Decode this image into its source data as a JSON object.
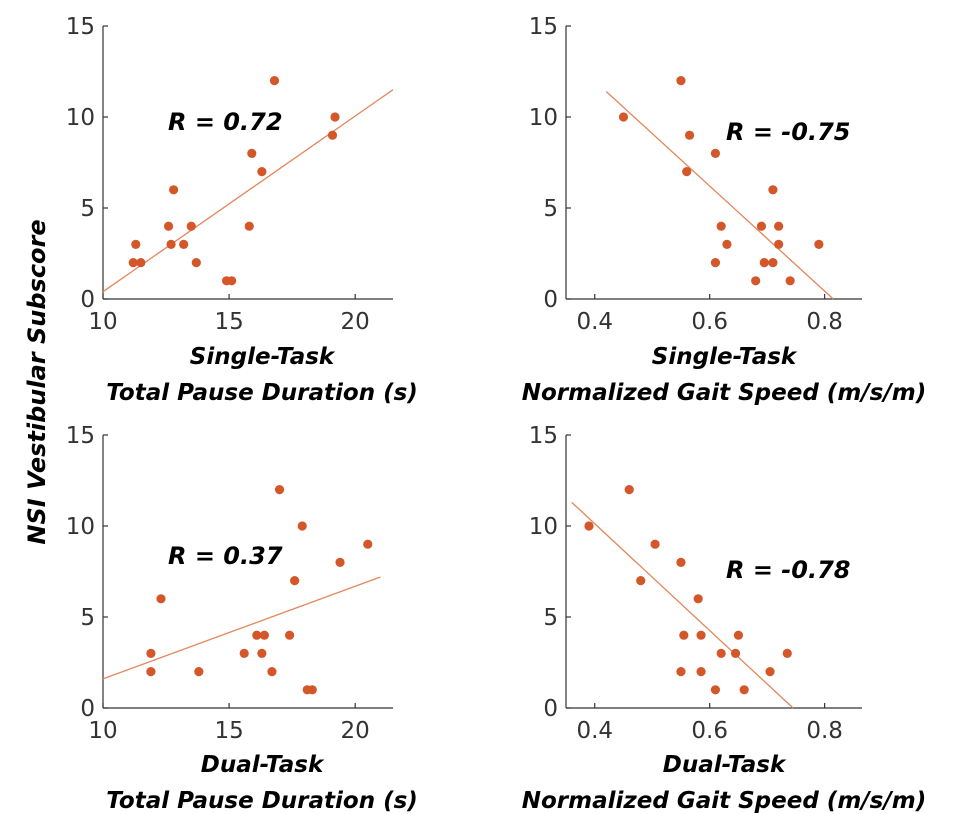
{
  "figure": {
    "ylabel": "NSI Vestibular Subscore",
    "point_color": "#D4572A",
    "fit_color": "#E2875A",
    "axis_color": "#333333"
  },
  "chart_data": [
    {
      "type": "scatter",
      "id": "st-pause",
      "xlabel_line1": "Single-Task",
      "xlabel_line2": "Total Pause Duration (s)",
      "annotation": "R = 0.72",
      "xlim": [
        10,
        21.5
      ],
      "ylim": [
        0,
        15
      ],
      "xticks": [
        10,
        15,
        20
      ],
      "xtick_labels": [
        "10",
        "15",
        "20"
      ],
      "yticks": [
        0,
        5,
        10,
        15
      ],
      "ytick_labels": [
        "0",
        "5",
        "10",
        "15"
      ],
      "points": [
        {
          "x": 11.2,
          "y": 2
        },
        {
          "x": 11.3,
          "y": 3
        },
        {
          "x": 11.5,
          "y": 2
        },
        {
          "x": 12.6,
          "y": 4
        },
        {
          "x": 12.7,
          "y": 3
        },
        {
          "x": 12.8,
          "y": 6
        },
        {
          "x": 13.2,
          "y": 3
        },
        {
          "x": 13.5,
          "y": 4
        },
        {
          "x": 13.7,
          "y": 2
        },
        {
          "x": 14.9,
          "y": 1
        },
        {
          "x": 15.1,
          "y": 1
        },
        {
          "x": 15.8,
          "y": 4
        },
        {
          "x": 15.9,
          "y": 8
        },
        {
          "x": 16.3,
          "y": 7
        },
        {
          "x": 16.8,
          "y": 12
        },
        {
          "x": 19.1,
          "y": 9
        },
        {
          "x": 19.2,
          "y": 10
        }
      ],
      "fit": {
        "x": [
          10,
          21.5
        ],
        "y": [
          0.4,
          11.5
        ]
      }
    },
    {
      "type": "scatter",
      "id": "st-speed",
      "xlabel_line1": "Single-Task",
      "xlabel_line2": "Normalized Gait Speed (m/s/m)",
      "annotation": "R = -0.75",
      "xlim": [
        0.35,
        0.865
      ],
      "ylim": [
        0,
        15
      ],
      "xticks": [
        0.4,
        0.6,
        0.8
      ],
      "xtick_labels": [
        "0.4",
        "0.6",
        "0.8"
      ],
      "yticks": [
        0,
        5,
        10,
        15
      ],
      "ytick_labels": [
        "0",
        "5",
        "10",
        "15"
      ],
      "points": [
        {
          "x": 0.45,
          "y": 10
        },
        {
          "x": 0.55,
          "y": 12
        },
        {
          "x": 0.565,
          "y": 9
        },
        {
          "x": 0.56,
          "y": 7
        },
        {
          "x": 0.61,
          "y": 8
        },
        {
          "x": 0.62,
          "y": 4
        },
        {
          "x": 0.61,
          "y": 2
        },
        {
          "x": 0.63,
          "y": 3
        },
        {
          "x": 0.68,
          "y": 1
        },
        {
          "x": 0.69,
          "y": 4
        },
        {
          "x": 0.695,
          "y": 2
        },
        {
          "x": 0.71,
          "y": 6
        },
        {
          "x": 0.72,
          "y": 4
        },
        {
          "x": 0.72,
          "y": 3
        },
        {
          "x": 0.71,
          "y": 2
        },
        {
          "x": 0.74,
          "y": 1
        },
        {
          "x": 0.79,
          "y": 3
        }
      ],
      "fit": {
        "x": [
          0.42,
          0.815
        ],
        "y": [
          11.4,
          0
        ]
      }
    },
    {
      "type": "scatter",
      "id": "dt-pause",
      "xlabel_line1": "Dual-Task",
      "xlabel_line2": "Total Pause Duration (s)",
      "annotation": "R = 0.37",
      "xlim": [
        10,
        21.5
      ],
      "ylim": [
        0,
        15
      ],
      "xticks": [
        10,
        15,
        20
      ],
      "xtick_labels": [
        "10",
        "15",
        "20"
      ],
      "yticks": [
        0,
        5,
        10,
        15
      ],
      "ytick_labels": [
        "0",
        "5",
        "10",
        "15"
      ],
      "points": [
        {
          "x": 11.9,
          "y": 2
        },
        {
          "x": 11.9,
          "y": 3
        },
        {
          "x": 12.3,
          "y": 6
        },
        {
          "x": 13.8,
          "y": 2
        },
        {
          "x": 15.6,
          "y": 3
        },
        {
          "x": 16.1,
          "y": 4
        },
        {
          "x": 16.3,
          "y": 3
        },
        {
          "x": 16.4,
          "y": 4
        },
        {
          "x": 16.7,
          "y": 2
        },
        {
          "x": 17.0,
          "y": 12
        },
        {
          "x": 17.4,
          "y": 4
        },
        {
          "x": 17.6,
          "y": 7
        },
        {
          "x": 17.9,
          "y": 10
        },
        {
          "x": 18.1,
          "y": 1
        },
        {
          "x": 18.3,
          "y": 1
        },
        {
          "x": 19.4,
          "y": 8
        },
        {
          "x": 20.5,
          "y": 9
        }
      ],
      "fit": {
        "x": [
          10,
          21.0
        ],
        "y": [
          1.6,
          7.2
        ]
      }
    },
    {
      "type": "scatter",
      "id": "dt-speed",
      "xlabel_line1": "Dual-Task",
      "xlabel_line2": "Normalized Gait Speed (m/s/m)",
      "annotation": "R = -0.78",
      "xlim": [
        0.35,
        0.865
      ],
      "ylim": [
        0,
        15
      ],
      "xticks": [
        0.4,
        0.6,
        0.8
      ],
      "xtick_labels": [
        "0.4",
        "0.6",
        "0.8"
      ],
      "yticks": [
        0,
        5,
        10,
        15
      ],
      "ytick_labels": [
        "0",
        "5",
        "10",
        "15"
      ],
      "points": [
        {
          "x": 0.39,
          "y": 10
        },
        {
          "x": 0.46,
          "y": 12
        },
        {
          "x": 0.505,
          "y": 9
        },
        {
          "x": 0.48,
          "y": 7
        },
        {
          "x": 0.55,
          "y": 8
        },
        {
          "x": 0.555,
          "y": 4
        },
        {
          "x": 0.55,
          "y": 2
        },
        {
          "x": 0.58,
          "y": 6
        },
        {
          "x": 0.585,
          "y": 4
        },
        {
          "x": 0.585,
          "y": 2
        },
        {
          "x": 0.61,
          "y": 1
        },
        {
          "x": 0.62,
          "y": 3
        },
        {
          "x": 0.645,
          "y": 3
        },
        {
          "x": 0.65,
          "y": 4
        },
        {
          "x": 0.66,
          "y": 1
        },
        {
          "x": 0.705,
          "y": 2
        },
        {
          "x": 0.735,
          "y": 3
        }
      ],
      "fit": {
        "x": [
          0.36,
          0.745
        ],
        "y": [
          11.3,
          0
        ]
      }
    }
  ]
}
